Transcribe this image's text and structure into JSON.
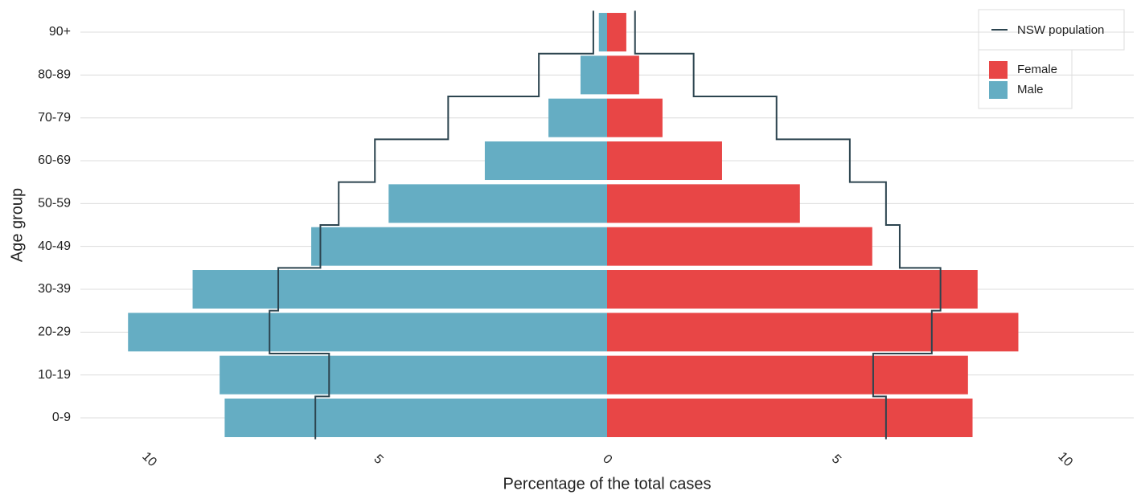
{
  "chart_data": {
    "type": "pyramid",
    "x_label": "Percentage of the total cases",
    "y_label": "Age group",
    "categories": [
      "0-9",
      "10-19",
      "20-29",
      "30-39",
      "40-49",
      "50-59",
      "60-69",
      "70-79",
      "80-89",
      "90+"
    ],
    "series": [
      {
        "name": "Female",
        "color": "#e84646",
        "values": [
          7.98,
          7.88,
          8.98,
          8.09,
          5.79,
          4.21,
          2.51,
          1.21,
          0.7,
          0.42
        ]
      },
      {
        "name": "Male",
        "color": "#65adc3",
        "values": [
          -8.35,
          -8.46,
          -10.46,
          -9.05,
          -6.46,
          -4.77,
          -2.67,
          -1.28,
          -0.58,
          -0.18
        ]
      }
    ],
    "reference": {
      "name": "NSW population",
      "color": "#2c444f",
      "female": [
        6.09,
        5.81,
        7.09,
        7.28,
        6.39,
        6.09,
        5.3,
        3.7,
        1.89,
        0.61
      ],
      "male": [
        -6.37,
        -6.07,
        -7.37,
        -7.18,
        -6.26,
        -5.86,
        -5.07,
        -3.47,
        -1.49,
        -0.3
      ]
    },
    "xlim": [
      -11.5,
      11.5
    ],
    "xticks": [
      {
        "value": -10,
        "label": "10"
      },
      {
        "value": -5,
        "label": "5"
      },
      0,
      5,
      10
    ],
    "grid": true
  }
}
